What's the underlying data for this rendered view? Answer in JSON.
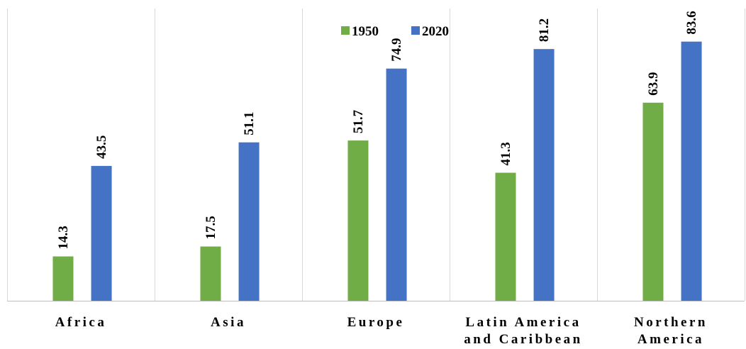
{
  "chart_data": {
    "type": "bar",
    "categories": [
      [
        "Africa"
      ],
      [
        "Asia"
      ],
      [
        "Europe"
      ],
      [
        "Latin America",
        "and Caribbean"
      ],
      [
        "Northern",
        "America"
      ]
    ],
    "series": [
      {
        "name": "1950",
        "color": "#70ad47",
        "values": [
          14.3,
          17.5,
          51.7,
          41.3,
          63.9
        ]
      },
      {
        "name": "2020",
        "color": "#4472c4",
        "values": [
          43.5,
          51.1,
          74.9,
          81.2,
          83.6
        ]
      }
    ],
    "ylim": [
      0,
      90
    ],
    "grid": "vertical-separators",
    "legend": "top-center",
    "data_labels": "rotated-vertical-above-bars"
  }
}
